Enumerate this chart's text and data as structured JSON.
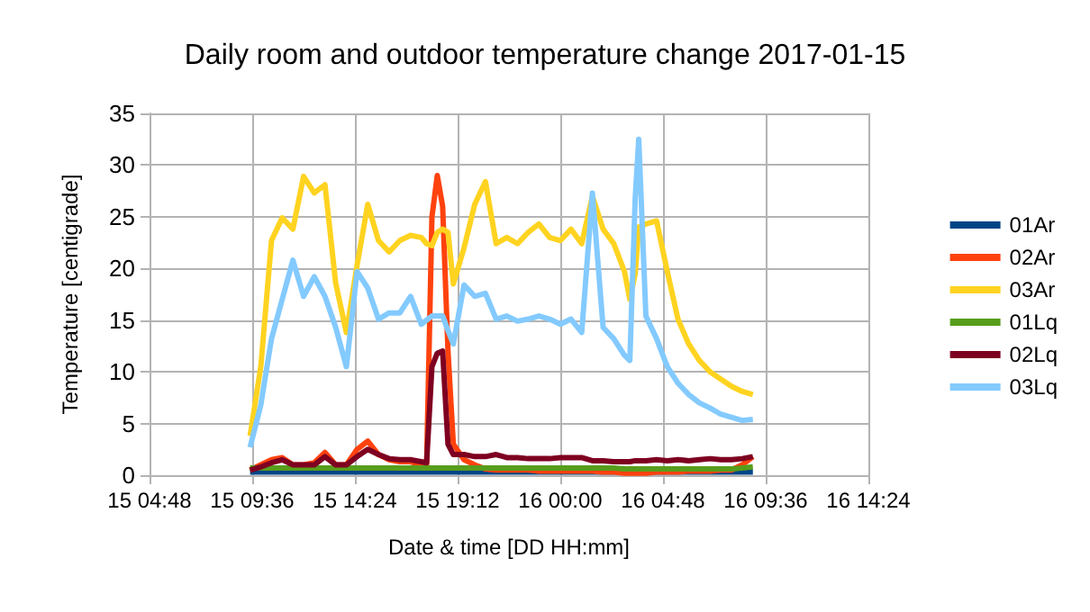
{
  "chart_data": {
    "type": "line",
    "title": "Daily room and outdoor temperature change 2017-01-15",
    "xlabel": "Date & time [DD HH:mm]",
    "ylabel": "Temperature [centigrade]",
    "x": [
      "2017-01-15T09:30",
      "2017-01-15T10:00",
      "2017-01-15T10:30",
      "2017-01-15T11:00",
      "2017-01-15T11:30",
      "2017-01-15T12:00",
      "2017-01-15T12:30",
      "2017-01-15T13:00",
      "2017-01-15T13:30",
      "2017-01-15T14:00",
      "2017-01-15T14:30",
      "2017-01-15T15:00",
      "2017-01-15T15:30",
      "2017-01-15T16:00",
      "2017-01-15T16:30",
      "2017-01-15T17:00",
      "2017-01-15T17:30",
      "2017-01-15T17:45",
      "2017-01-15T18:00",
      "2017-01-15T18:15",
      "2017-01-15T18:30",
      "2017-01-15T18:45",
      "2017-01-15T19:00",
      "2017-01-15T19:30",
      "2017-01-15T20:00",
      "2017-01-15T20:30",
      "2017-01-15T21:00",
      "2017-01-15T21:30",
      "2017-01-15T22:00",
      "2017-01-15T22:30",
      "2017-01-15T23:00",
      "2017-01-15T23:30",
      "2017-01-16T00:00",
      "2017-01-16T00:30",
      "2017-01-16T01:00",
      "2017-01-16T01:30",
      "2017-01-16T02:00",
      "2017-01-16T02:30",
      "2017-01-16T03:00",
      "2017-01-16T03:15",
      "2017-01-16T03:30",
      "2017-01-16T03:40",
      "2017-01-16T04:00",
      "2017-01-16T04:30",
      "2017-01-16T05:00",
      "2017-01-16T05:30",
      "2017-01-16T06:00",
      "2017-01-16T06:30",
      "2017-01-16T07:00",
      "2017-01-16T07:30",
      "2017-01-16T08:00",
      "2017-01-16T08:30",
      "2017-01-16T09:00"
    ],
    "series": [
      {
        "name": "01Ar",
        "color": "#004586",
        "values": [
          0.3,
          0.3,
          0.3,
          0.3,
          0.3,
          0.3,
          0.3,
          0.3,
          0.3,
          0.3,
          0.3,
          0.3,
          0.3,
          0.3,
          0.3,
          0.3,
          0.3,
          0.3,
          0.3,
          0.3,
          0.3,
          0.3,
          0.3,
          0.3,
          0.3,
          0.3,
          0.3,
          0.3,
          0.3,
          0.3,
          0.3,
          0.3,
          0.3,
          0.3,
          0.3,
          0.3,
          0.3,
          0.3,
          0.3,
          0.3,
          0.3,
          0.3,
          0.3,
          0.3,
          0.3,
          0.3,
          0.3,
          0.3,
          0.3,
          0.3,
          0.3,
          0.3,
          0.3
        ]
      },
      {
        "name": "02Ar",
        "color": "#ff420e",
        "values": [
          0.5,
          1,
          1.5,
          1.7,
          1,
          1,
          1.2,
          2.2,
          1,
          1,
          2.5,
          3.3,
          2,
          1.5,
          1.3,
          1.3,
          1,
          1,
          25,
          29,
          26,
          12,
          3,
          1.5,
          1,
          0.6,
          0.5,
          0.5,
          0.5,
          0.5,
          0.4,
          0.4,
          0.4,
          0.4,
          0.4,
          0.4,
          0.3,
          0.3,
          0.2,
          0.2,
          0.2,
          0.2,
          0.2,
          0.3,
          0.3,
          0.3,
          0.4,
          0.4,
          0.4,
          0.5,
          0.5,
          1,
          1.8
        ]
      },
      {
        "name": "03Ar",
        "color": "#ffd320",
        "values": [
          3.8,
          10.5,
          22.7,
          24.9,
          23.8,
          28.9,
          27.3,
          28.1,
          18.6,
          13.8,
          20.3,
          26.2,
          22.7,
          21.6,
          22.7,
          23.2,
          23,
          22.4,
          22.2,
          23.5,
          23.8,
          23.5,
          18.5,
          22,
          26.2,
          28.4,
          22.4,
          23,
          22.4,
          23.5,
          24.3,
          23,
          22.7,
          23.8,
          22.4,
          27,
          23.8,
          22.4,
          19.7,
          17,
          19.5,
          24,
          24.3,
          24.6,
          19.7,
          15.1,
          12.7,
          11.1,
          10,
          9.3,
          8.6,
          8.1,
          7.8
        ]
      },
      {
        "name": "01Lq",
        "color": "#579d1c",
        "values": [
          0.7,
          0.7,
          0.7,
          0.7,
          0.7,
          0.7,
          0.7,
          0.7,
          0.7,
          0.7,
          0.7,
          0.7,
          0.7,
          0.7,
          0.7,
          0.7,
          0.7,
          0.7,
          0.7,
          0.7,
          0.7,
          0.7,
          0.7,
          0.7,
          0.7,
          0.7,
          0.7,
          0.7,
          0.7,
          0.7,
          0.7,
          0.7,
          0.7,
          0.7,
          0.7,
          0.7,
          0.7,
          0.7,
          0.6,
          0.6,
          0.6,
          0.6,
          0.6,
          0.6,
          0.6,
          0.6,
          0.6,
          0.6,
          0.6,
          0.6,
          0.6,
          0.7,
          0.8
        ]
      },
      {
        "name": "02Lq",
        "color": "#7e0021",
        "values": [
          0.5,
          0.8,
          1.2,
          1.5,
          1,
          1,
          1,
          1.8,
          1,
          1,
          1.8,
          2.5,
          2,
          1.6,
          1.5,
          1.5,
          1.3,
          1.2,
          10.5,
          11.8,
          12,
          3,
          2,
          2,
          1.8,
          1.8,
          2,
          1.7,
          1.7,
          1.6,
          1.6,
          1.6,
          1.7,
          1.7,
          1.7,
          1.4,
          1.4,
          1.3,
          1.3,
          1.3,
          1.4,
          1.4,
          1.4,
          1.5,
          1.4,
          1.5,
          1.4,
          1.5,
          1.6,
          1.5,
          1.5,
          1.6,
          1.8
        ]
      },
      {
        "name": "03Lq",
        "color": "#83caff",
        "values": [
          2.7,
          6.8,
          13.2,
          17,
          20.8,
          17.3,
          19.2,
          17.3,
          14.3,
          10.5,
          19.7,
          18.1,
          15.1,
          15.7,
          15.7,
          17.3,
          14.6,
          15,
          15.4,
          15.4,
          15.4,
          14,
          12.7,
          18.4,
          17.3,
          17.6,
          15.1,
          15.4,
          14.9,
          15.1,
          15.4,
          15.1,
          14.6,
          15.1,
          13.8,
          27.3,
          14.3,
          13.2,
          11.6,
          11.1,
          26.8,
          32.5,
          15.4,
          13.2,
          10.5,
          8.9,
          7.8,
          7,
          6.5,
          5.9,
          5.6,
          5.3,
          5.4
        ]
      }
    ],
    "xlim": [
      "2017-01-15T04:48",
      "2017-01-16T14:24"
    ],
    "xticks": [
      {
        "value": "2017-01-15T04:48",
        "label": "15 04:48"
      },
      {
        "value": "2017-01-15T09:36",
        "label": "15 09:36"
      },
      {
        "value": "2017-01-15T14:24",
        "label": "15 14:24"
      },
      {
        "value": "2017-01-15T19:12",
        "label": "15 19:12"
      },
      {
        "value": "2017-01-16T00:00",
        "label": "16 00:00"
      },
      {
        "value": "2017-01-16T04:48",
        "label": "16 04:48"
      },
      {
        "value": "2017-01-16T09:36",
        "label": "16 09:36"
      },
      {
        "value": "2017-01-16T14:24",
        "label": "16 14:24"
      }
    ],
    "ylim": [
      0,
      35
    ],
    "yticks": [
      0,
      5,
      10,
      15,
      20,
      25,
      30,
      35
    ],
    "grid": true,
    "legend": "right",
    "line_style": "solid"
  }
}
